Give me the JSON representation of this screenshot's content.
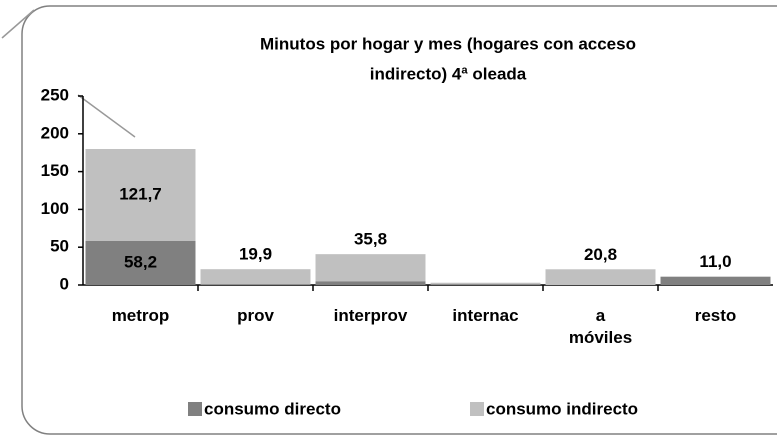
{
  "chart_data": {
    "type": "stacked-bar",
    "title": [
      "Minutos por hogar y mes (hogares con acceso",
      "indirecto) 4ª oleada"
    ],
    "categories": [
      "metrop",
      "prov",
      "interprov",
      "internac",
      "a móviles",
      "resto"
    ],
    "series": [
      {
        "name": "consumo directo",
        "color": "#808080",
        "values": [
          58.2,
          1,
          5,
          1,
          0,
          11.0
        ],
        "value_labels": [
          "58,2",
          null,
          null,
          null,
          null,
          "11,0"
        ]
      },
      {
        "name": "consumo indirecto",
        "color": "#c0c0c0",
        "values": [
          121.7,
          19.9,
          35.8,
          2,
          20.8,
          0
        ],
        "value_labels": [
          "121,7",
          "19,9",
          "35,8",
          null,
          "20,8",
          null
        ]
      }
    ],
    "ylim": [
      0,
      250
    ],
    "yticks": [
      0,
      50,
      100,
      150,
      200,
      250
    ],
    "grid": false,
    "legend": "bottom"
  }
}
